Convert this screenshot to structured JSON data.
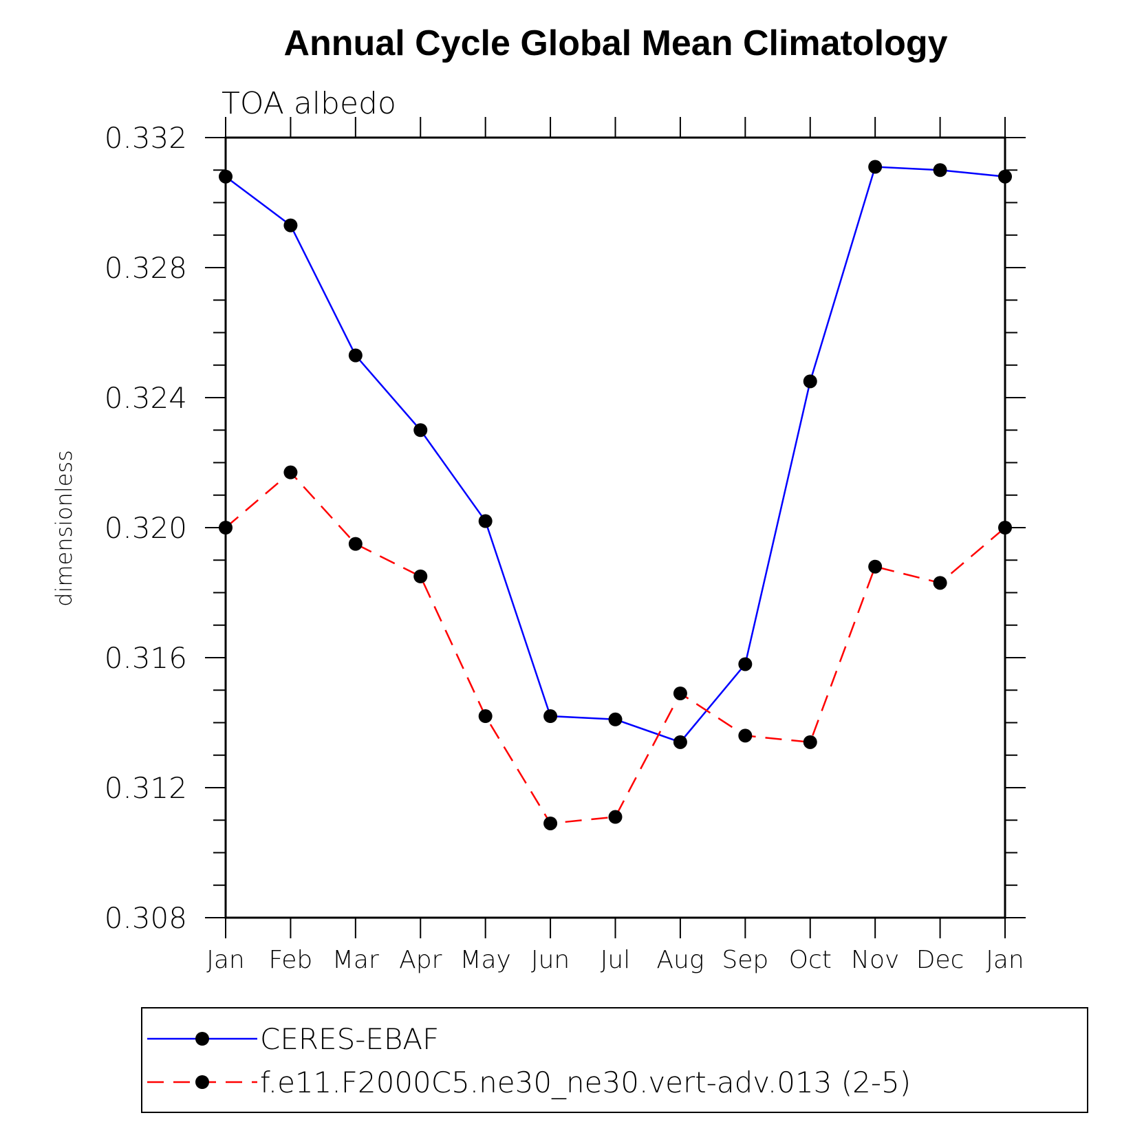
{
  "chart_data": {
    "type": "line",
    "title": "Annual Cycle Global Mean Climatology",
    "subtitle": "TOA albedo",
    "xlabel": "",
    "ylabel": "dimensionless",
    "categories": [
      "Jan",
      "Feb",
      "Mar",
      "Apr",
      "May",
      "Jun",
      "Jul",
      "Aug",
      "Sep",
      "Oct",
      "Nov",
      "Dec",
      "Jan"
    ],
    "ylim": [
      0.308,
      0.332
    ],
    "yticks": [
      "0.308",
      "0.312",
      "0.316",
      "0.320",
      "0.324",
      "0.328",
      "0.332"
    ],
    "grid": false,
    "legend_position": "bottom",
    "series": [
      {
        "name": "CERES-EBAF",
        "color": "#0000ff",
        "line_style": "solid",
        "marker": "filled-circle",
        "values": [
          0.3308,
          0.3293,
          0.3253,
          0.323,
          0.3202,
          0.3142,
          0.3141,
          0.3134,
          0.3158,
          0.3245,
          0.3311,
          0.331,
          0.3308
        ]
      },
      {
        "name": "f.e11.F2000C5.ne30_ne30.vert-adv.013 (2-5)",
        "color": "#ff0000",
        "line_style": "dashed",
        "marker": "filled-circle",
        "values": [
          0.32,
          0.3217,
          0.3195,
          0.3185,
          0.3142,
          0.3109,
          0.3111,
          0.3149,
          0.3136,
          0.3134,
          0.3188,
          0.3183,
          0.32
        ]
      }
    ]
  }
}
